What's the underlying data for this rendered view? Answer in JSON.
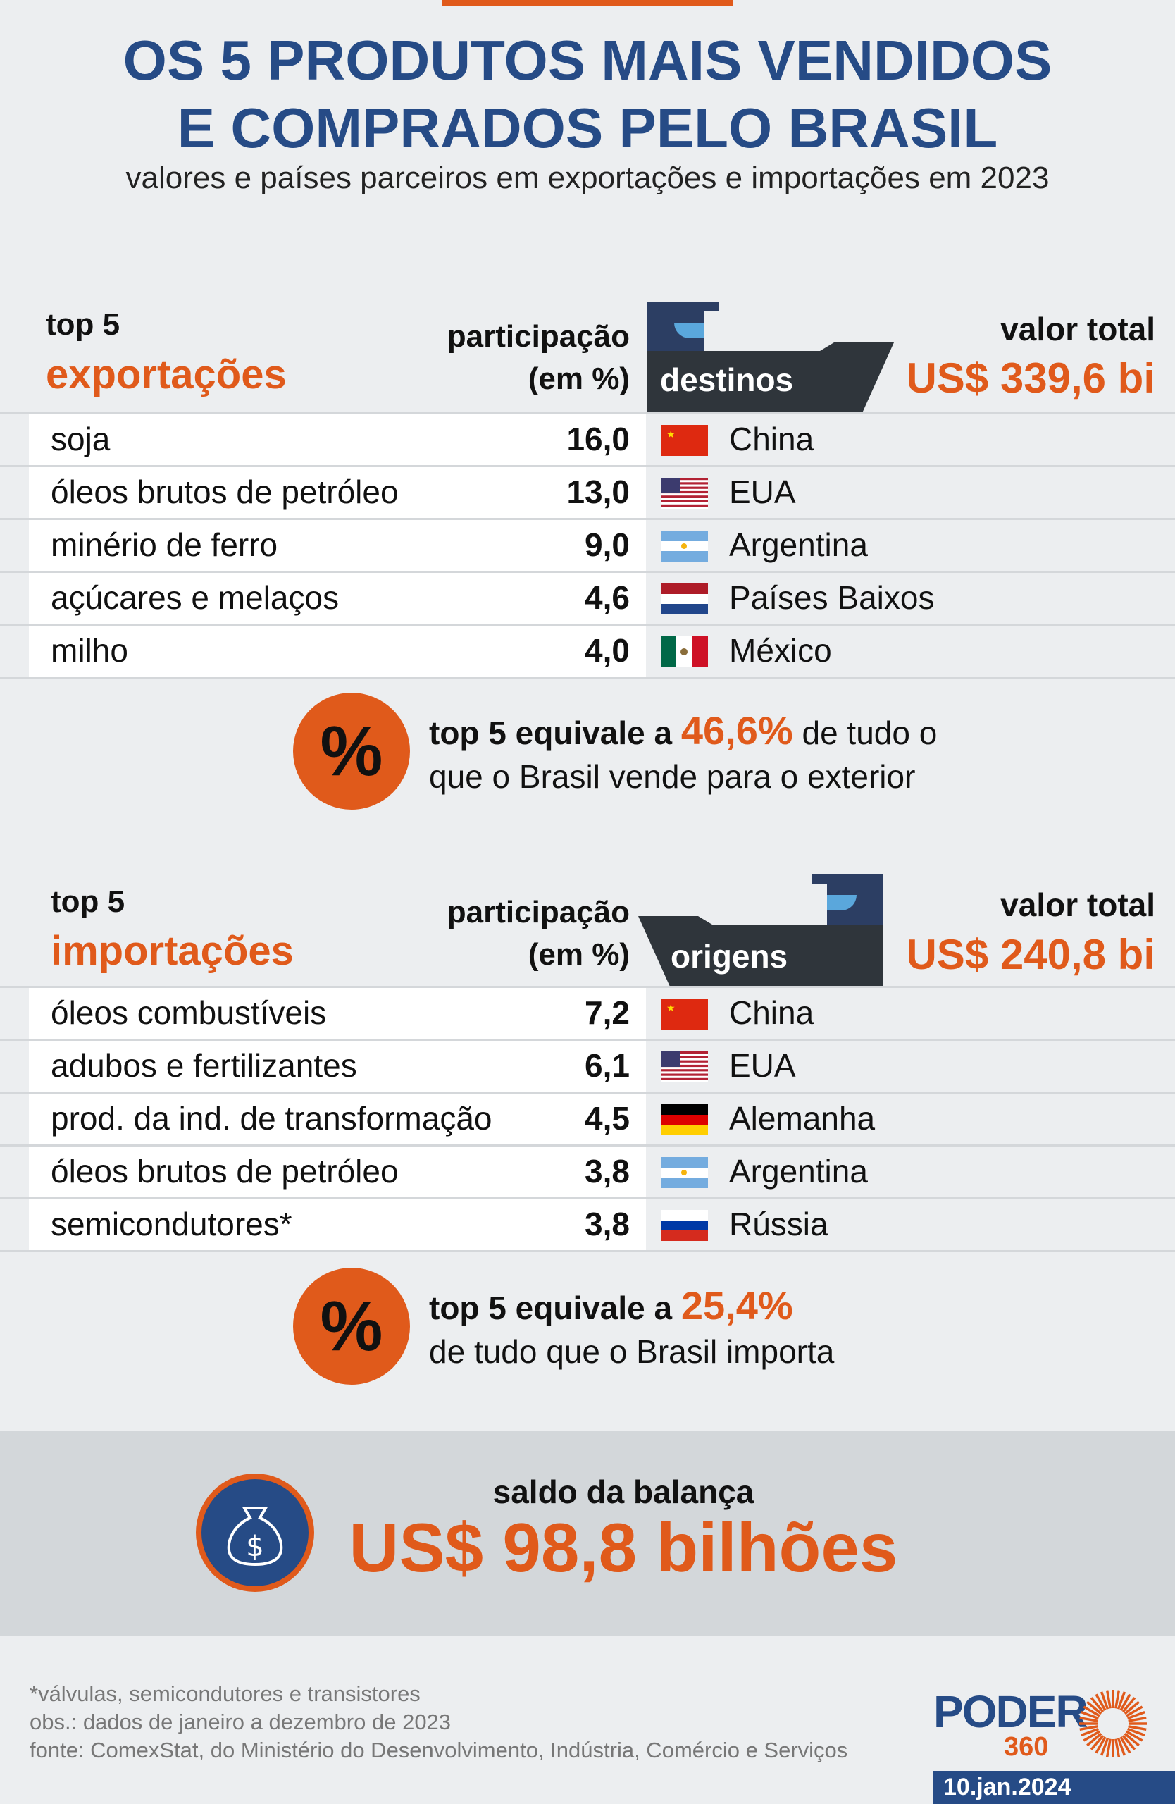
{
  "title": {
    "line1": "OS 5 PRODUTOS MAIS VENDIDOS",
    "line2": "E COMPRADOS PELO BRASIL",
    "subtitle": "valores e países parceiros em exportações e importações em 2023"
  },
  "exports": {
    "top": "top 5",
    "label": "exportações",
    "share_l1": "participação",
    "share_l2": "(em %)",
    "partner_label": "destinos",
    "total_label": "valor total",
    "total_value": "US$ 339,6 bi",
    "rows": [
      {
        "product": "soja",
        "share": "16,0",
        "country": "China",
        "flag": "china"
      },
      {
        "product": "óleos brutos de petróleo",
        "share": "13,0",
        "country": "EUA",
        "flag": "usa"
      },
      {
        "product": "minério de ferro",
        "share": "9,0",
        "country": "Argentina",
        "flag": "argentina"
      },
      {
        "product": "açúcares e melaços",
        "share": "4,6",
        "country": "Países Baixos",
        "flag": "netherlands"
      },
      {
        "product": "milho",
        "share": "4,0",
        "country": "México",
        "flag": "mexico"
      }
    ],
    "summary": {
      "icon": "percent-icon",
      "pre": "top 5 equivale a ",
      "value": "46,6%",
      "post1": " de tudo o",
      "post2": "que o Brasil vende para o exterior"
    }
  },
  "imports": {
    "top": "top 5",
    "label": "importações",
    "share_l1": "participação",
    "share_l2": "(em %)",
    "partner_label": "origens",
    "total_label": "valor total",
    "total_value": "US$ 240,8 bi",
    "rows": [
      {
        "product": "óleos combustíveis",
        "share": "7,2",
        "country": "China",
        "flag": "china"
      },
      {
        "product": "adubos e fertilizantes",
        "share": "6,1",
        "country": "EUA",
        "flag": "usa"
      },
      {
        "product": "prod. da ind. de transformação",
        "share": "4,5",
        "country": "Alemanha",
        "flag": "germany"
      },
      {
        "product": "óleos brutos de petróleo",
        "share": "3,8",
        "country": "Argentina",
        "flag": "argentina"
      },
      {
        "product": "semicondutores*",
        "share": "3,8",
        "country": "Rússia",
        "flag": "russia"
      }
    ],
    "summary": {
      "icon": "percent-icon",
      "pre": "top 5 equivale a ",
      "value": "25,4%",
      "post1": "",
      "post2": "de tudo que o Brasil importa"
    }
  },
  "balance": {
    "icon": "money-bag-icon",
    "label": "saldo da balança",
    "value": "US$ 98,8 bilhões"
  },
  "footer": {
    "note1": "*válvulas, semicondutores e transistores",
    "note2": "obs.: dados de janeiro a dezembro de 2023",
    "note3": "fonte: ComexStat, do Ministério do Desenvolvimento, Indústria, Comércio e Serviços",
    "logo_text": "PODER",
    "logo_num": "360",
    "date": "10.jan.2024"
  },
  "colors": {
    "accent": "#e05a1b",
    "navy": "#264b86",
    "ship": "#2f353b",
    "band": "#d3d7da"
  }
}
